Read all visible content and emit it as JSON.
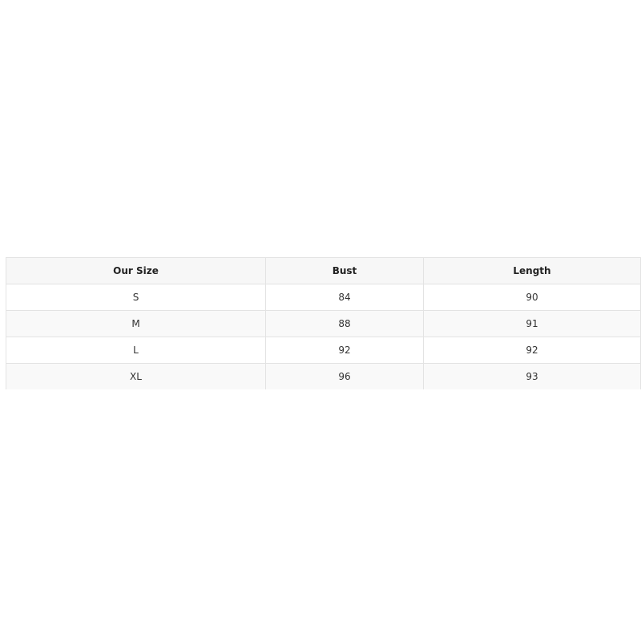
{
  "table": {
    "headers": [
      "Our Size",
      "Bust",
      "Length"
    ],
    "rows": [
      [
        "S",
        "84",
        "90"
      ],
      [
        "M",
        "88",
        "91"
      ],
      [
        "L",
        "92",
        "92"
      ],
      [
        "XL",
        "96",
        "93"
      ]
    ]
  }
}
